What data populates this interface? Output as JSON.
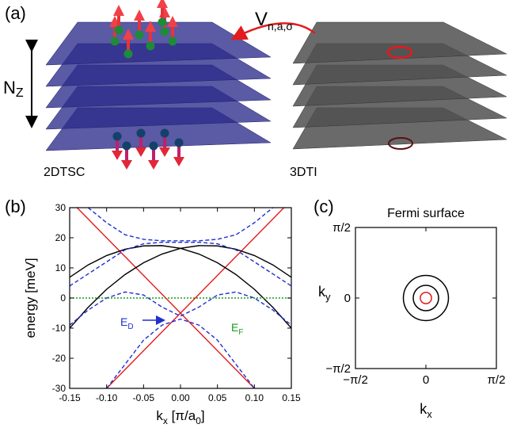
{
  "panel_a": {
    "label": "(a)",
    "nz": [
      "N",
      "Z"
    ],
    "coupling": [
      "V",
      "n,a,σ"
    ],
    "left_stack": "2DTSC",
    "right_stack": "3DTI"
  },
  "chart_data": [
    {
      "type": "line",
      "panel_label": "(b)",
      "x_label": [
        "k",
        "x",
        " [π/a",
        "0",
        "]"
      ],
      "y_label": "energy [meV]",
      "annotations": [
        [
          "E",
          "D"
        ],
        [
          "E",
          "F"
        ]
      ],
      "x": [
        -0.15,
        -0.125,
        -0.1,
        -0.075,
        -0.05,
        -0.025,
        0,
        0.025,
        0.05,
        0.075,
        0.1,
        0.125,
        0.15
      ],
      "xlim": [
        -0.15,
        0.15
      ],
      "xticks": [
        -0.15,
        {
          "value": -0.1,
          "label": "-0.10"
        },
        -0.05,
        {
          "value": 0,
          "label": "0.00"
        },
        0.05,
        {
          "value": 0.1,
          "label": "0.10"
        },
        0.15
      ],
      "ylim": [
        -30,
        30
      ],
      "yticks": [
        -30,
        -20,
        -10,
        0,
        10,
        20,
        30
      ],
      "series": [
        {
          "color": "#e41a1c",
          "style": "solid",
          "x": [
            -0.14,
            0.1
          ],
          "values": [
            30,
            -30
          ]
        },
        {
          "color": "#e41a1c",
          "style": "solid",
          "x": [
            -0.1,
            0.14
          ],
          "values": [
            -30,
            30
          ]
        },
        {
          "color": "#000000",
          "style": "solid",
          "values": [
            6.9,
            11.0,
            14.1,
            16.2,
            17.3,
            17.4,
            16.5,
            14.6,
            11.7,
            7.8,
            2.9,
            -3.1,
            -10.0
          ]
        },
        {
          "color": "#000000",
          "style": "solid",
          "values": [
            -10.0,
            -3.1,
            2.9,
            7.8,
            11.7,
            14.6,
            16.5,
            17.4,
            17.3,
            16.2,
            14.1,
            11.0,
            6.9
          ]
        },
        {
          "color": "#1f2fd0",
          "style": "dashed",
          "values": [
            null,
            30,
            25,
            21,
            19.5,
            19,
            19,
            19,
            19.5,
            21,
            25,
            30,
            null
          ]
        },
        {
          "color": "#1f2fd0",
          "style": "dashed",
          "values": [
            4,
            8,
            12,
            16,
            18,
            18.5,
            18.5,
            18.5,
            18,
            16,
            12,
            8,
            4
          ]
        },
        {
          "color": "#1f2fd0",
          "style": "dashed",
          "values": [
            -9,
            -4,
            0,
            2,
            1,
            -3,
            -6,
            -3,
            1,
            2,
            0,
            -4,
            -9
          ]
        },
        {
          "color": "#1f2fd0",
          "style": "dashed",
          "values": [
            null,
            null,
            -30,
            -22,
            -14,
            -9,
            -7,
            -9,
            -14,
            -22,
            -30,
            null,
            null
          ]
        },
        {
          "color": "#1a9a1a",
          "style": "dotted",
          "x": [
            -0.15,
            0.15
          ],
          "values": [
            0,
            0
          ]
        }
      ]
    },
    {
      "type": "circles",
      "panel_label": "(c)",
      "title": "Fermi surface",
      "x_label": [
        "k",
        "x"
      ],
      "y_label": [
        "k",
        "y"
      ],
      "xlim": [
        -0.5,
        0.5
      ],
      "ylim": [
        -0.5,
        0.5
      ],
      "xticks": [
        {
          "value": -0.5,
          "label": "−π/2"
        },
        0,
        {
          "value": 0.5,
          "label": "π/2"
        }
      ],
      "yticks": [
        {
          "value": -0.5,
          "label": "−π/2"
        },
        0,
        {
          "value": 0.5,
          "label": "π/2"
        }
      ],
      "circles": [
        {
          "x": 0,
          "y": 0,
          "r": 0.16,
          "color": "#000000"
        },
        {
          "x": 0,
          "y": 0,
          "r": 0.09,
          "color": "#000000"
        },
        {
          "x": 0,
          "y": 0,
          "r": 0.04,
          "color": "#e41a1c"
        }
      ]
    }
  ]
}
